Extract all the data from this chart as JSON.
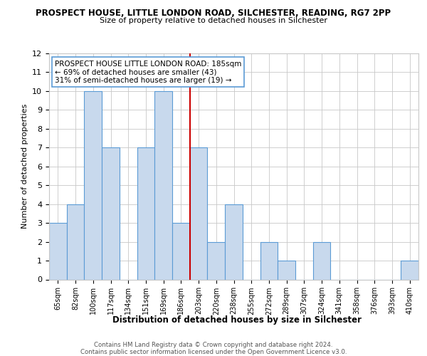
{
  "title": "PROSPECT HOUSE, LITTLE LONDON ROAD, SILCHESTER, READING, RG7 2PP",
  "subtitle": "Size of property relative to detached houses in Silchester",
  "xlabel": "Distribution of detached houses by size in Silchester",
  "ylabel": "Number of detached properties",
  "bins": [
    "65sqm",
    "82sqm",
    "100sqm",
    "117sqm",
    "134sqm",
    "151sqm",
    "169sqm",
    "186sqm",
    "203sqm",
    "220sqm",
    "238sqm",
    "255sqm",
    "272sqm",
    "289sqm",
    "307sqm",
    "324sqm",
    "341sqm",
    "358sqm",
    "376sqm",
    "393sqm",
    "410sqm"
  ],
  "values": [
    3,
    4,
    10,
    7,
    0,
    7,
    10,
    3,
    7,
    2,
    4,
    0,
    2,
    1,
    0,
    2,
    0,
    0,
    0,
    0,
    1
  ],
  "bar_color": "#c8d9ed",
  "bar_edge_color": "#5b9bd5",
  "grid_color": "#c8c8c8",
  "background_color": "#ffffff",
  "red_line_x": 7.5,
  "property_line_color": "#cc0000",
  "annotation_line1": "PROSPECT HOUSE LITTLE LONDON ROAD: 185sqm",
  "annotation_line2": "← 69% of detached houses are smaller (43)",
  "annotation_line3": "31% of semi-detached houses are larger (19) →",
  "annotation_box_facecolor": "#ffffff",
  "annotation_box_edgecolor": "#5b9bd5",
  "footer_line1": "Contains HM Land Registry data © Crown copyright and database right 2024.",
  "footer_line2": "Contains public sector information licensed under the Open Government Licence v3.0.",
  "ylim": [
    0,
    12
  ],
  "yticks": [
    0,
    1,
    2,
    3,
    4,
    5,
    6,
    7,
    8,
    9,
    10,
    11,
    12
  ]
}
